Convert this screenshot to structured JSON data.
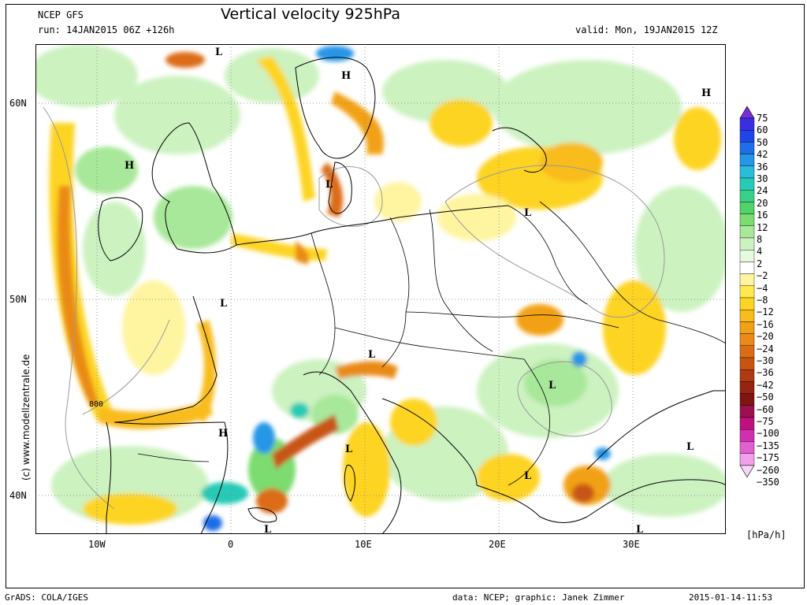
{
  "header": {
    "model": "NCEP GFS",
    "title": "Vertical velocity 925hPa",
    "run": "run: 14JAN2015 06Z +126h",
    "valid": "valid: Mon, 19JAN2015 12Z"
  },
  "side_credit": "(c) www.modellzentrale.de",
  "axes": {
    "lat_labels": [
      "60N",
      "50N",
      "40N"
    ],
    "lon_labels": [
      "10W",
      "0",
      "10E",
      "20E",
      "30E"
    ]
  },
  "contour_label": "800",
  "pressure_centers": [
    "L",
    "H",
    "H",
    "H",
    "L",
    "L",
    "L",
    "L",
    "H",
    "L",
    "L",
    "L",
    "L",
    "L",
    "L"
  ],
  "colorbar": {
    "labels": [
      "75",
      "60",
      "50",
      "42",
      "36",
      "30",
      "24",
      "20",
      "16",
      "12",
      "8",
      "4",
      "2",
      "−2",
      "−4",
      "−8",
      "−12",
      "−16",
      "−20",
      "−24",
      "−30",
      "−36",
      "−42",
      "−50",
      "−60",
      "−75",
      "−100",
      "−135",
      "−175",
      "−260",
      "−350"
    ],
    "colors": [
      "#7a2fd6",
      "#3a2ee0",
      "#1f44e8",
      "#1f6ee8",
      "#2596e6",
      "#2bbcdc",
      "#28cab6",
      "#3bd08a",
      "#4fd36a",
      "#7cdc6f",
      "#a8e89a",
      "#ccf2c0",
      "#e6fae0",
      "#ffffff",
      "#fff4a0",
      "#ffe850",
      "#fdd424",
      "#f8bc1c",
      "#f2a114",
      "#ea8a18",
      "#dc6c14",
      "#c85412",
      "#b03a12",
      "#962410",
      "#801410",
      "#9c1050",
      "#c01080",
      "#d030b0",
      "#e060d0",
      "#f0a0ec",
      "#f8d4f8"
    ],
    "unit": "[hPa/h]"
  },
  "footer": {
    "left": "GrADS: COLA/IGES",
    "center": "data: NCEP; graphic: Janek Zimmer",
    "right": "2015-01-14-11:53"
  }
}
